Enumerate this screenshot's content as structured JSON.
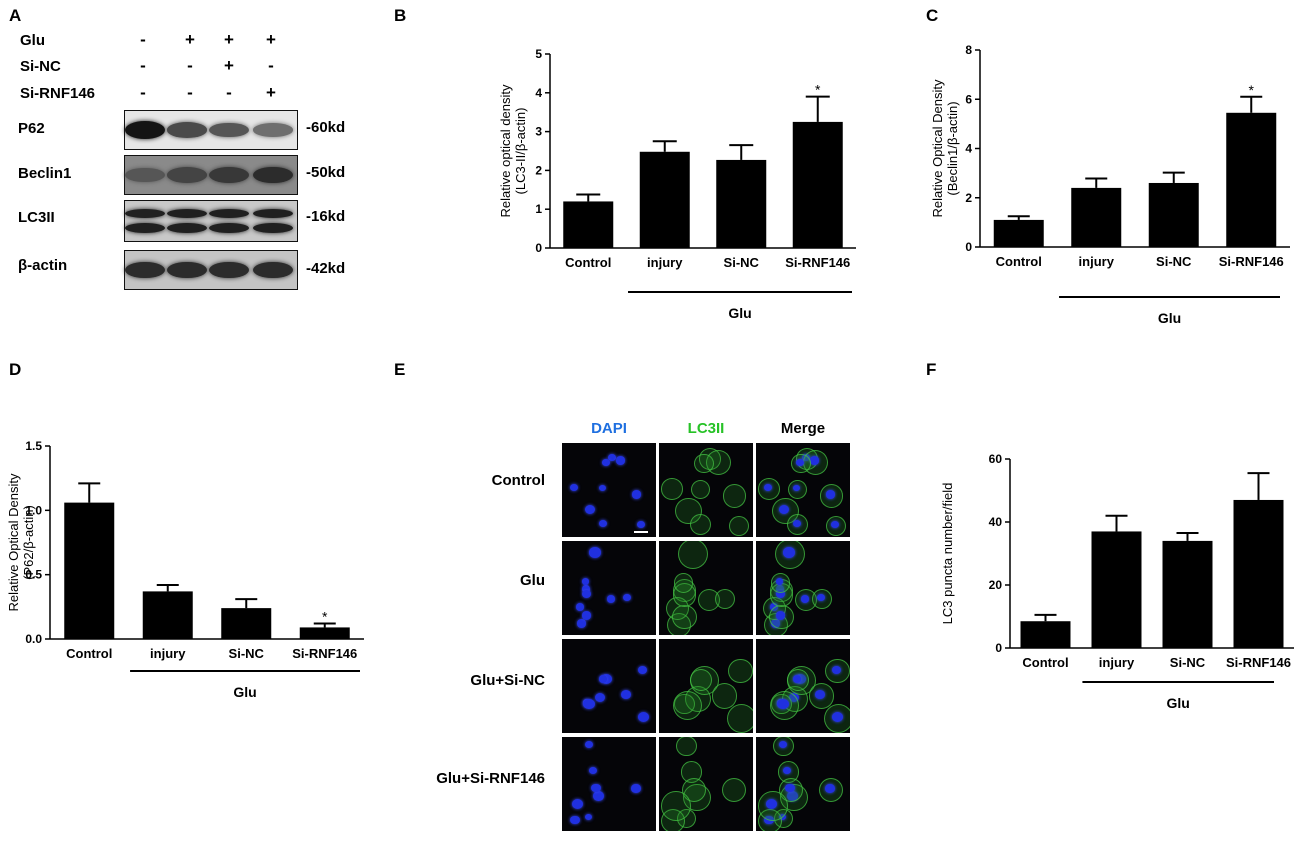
{
  "panels": {
    "a": {
      "letter": "A",
      "rows": [
        {
          "label": "Glu",
          "signs": [
            "-",
            "+",
            "+",
            "+"
          ]
        },
        {
          "label": "Si-NC",
          "signs": [
            "-",
            "-",
            "+",
            "-"
          ]
        },
        {
          "label": "Si-RNF146",
          "signs": [
            "-",
            "-",
            "-",
            "+"
          ]
        }
      ],
      "blots": [
        {
          "name": "P62",
          "kd": "-60kd",
          "intensity": [
            1.0,
            0.55,
            0.45,
            0.25
          ]
        },
        {
          "name": "Beclin1",
          "kd": "-50kd",
          "intensity": [
            0.45,
            0.6,
            0.7,
            0.8
          ]
        },
        {
          "name": "LC3II",
          "kd": "-16kd",
          "intensity": [
            0.9,
            0.9,
            0.9,
            0.9
          ]
        },
        {
          "name": "β-actin",
          "kd": "-42kd",
          "intensity": [
            0.8,
            0.8,
            0.8,
            0.8
          ]
        }
      ]
    },
    "b": {
      "letter": "B"
    },
    "c": {
      "letter": "C"
    },
    "d": {
      "letter": "D"
    },
    "e": {
      "letter": "E",
      "columns": [
        "DAPI",
        "LC3II",
        "Merge"
      ],
      "column_colors": [
        "#1e6fe0",
        "#27c227",
        "#000000"
      ],
      "rows": [
        "Control",
        "Glu",
        "Glu+Si-NC",
        "Glu+Si-RNF146"
      ]
    },
    "f": {
      "letter": "F"
    }
  },
  "chart_data": [
    {
      "panel": "B",
      "type": "bar",
      "categories": [
        "Control",
        "injury",
        "Si-NC",
        "Si-RNF146"
      ],
      "values": [
        1.2,
        2.48,
        2.27,
        3.25
      ],
      "errors": [
        0.18,
        0.27,
        0.38,
        0.65
      ],
      "significance": [
        "",
        "",
        "",
        "*"
      ],
      "ylabel": "Relative optical density",
      "ylabel2": "(LC3-II/β-actin)",
      "ylim": [
        0,
        5
      ],
      "yticks": [
        "0",
        "1",
        "2",
        "3",
        "4",
        "5"
      ],
      "group_label": "Glu"
    },
    {
      "panel": "C",
      "type": "bar",
      "categories": [
        "Control",
        "injury",
        "Si-NC",
        "Si-RNF146"
      ],
      "values": [
        1.1,
        2.4,
        2.6,
        5.45
      ],
      "errors": [
        0.15,
        0.38,
        0.42,
        0.65
      ],
      "significance": [
        "",
        "",
        "",
        "*"
      ],
      "ylabel": "Relative Optical Density",
      "ylabel2": "(Beclin1/β-actin)",
      "ylim": [
        0,
        8
      ],
      "yticks": [
        "0",
        "2",
        "4",
        "6",
        "8"
      ],
      "group_label": "Glu"
    },
    {
      "panel": "D",
      "type": "bar",
      "categories": [
        "Control",
        "injury",
        "Si-NC",
        "Si-RNF146"
      ],
      "values": [
        1.06,
        0.37,
        0.24,
        0.09
      ],
      "errors": [
        0.15,
        0.05,
        0.07,
        0.03
      ],
      "significance": [
        "",
        "",
        "",
        "*"
      ],
      "ylabel": "Relative Optical Density",
      "ylabel2": "(P62/β-actin)",
      "ylim": [
        0,
        1.5
      ],
      "yticks": [
        "0.0",
        "0.5",
        "1.0",
        "1.5"
      ],
      "group_label": "Glu"
    },
    {
      "panel": "F",
      "type": "bar",
      "categories": [
        "Control",
        "injury",
        "Si-NC",
        "Si-RNF146"
      ],
      "values": [
        8.5,
        37,
        34,
        47
      ],
      "errors": [
        2.0,
        5.0,
        2.5,
        8.5
      ],
      "significance": [
        "",
        "",
        "",
        ""
      ],
      "ylabel": "LC3 puncta number/field",
      "ylabel2": "",
      "ylim": [
        0,
        60
      ],
      "yticks": [
        "0",
        "20",
        "40",
        "60"
      ],
      "group_label": "Glu"
    }
  ]
}
